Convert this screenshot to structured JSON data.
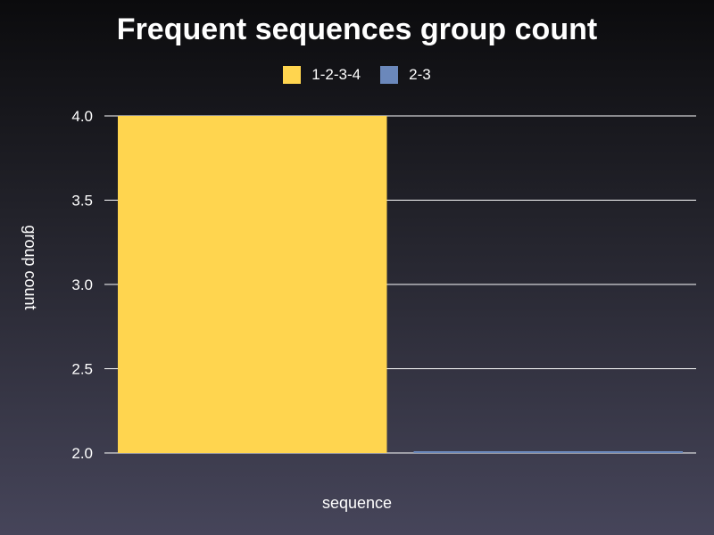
{
  "chart_data": {
    "type": "bar",
    "title": "Frequent sequences group count",
    "xlabel": "sequence",
    "ylabel": "group count",
    "ylim": [
      2.0,
      4.0
    ],
    "y_ticks": [
      "4.0",
      "3.5",
      "3.0",
      "2.5",
      "2.0"
    ],
    "y_tick_values": [
      4.0,
      3.5,
      3.0,
      2.5,
      2.0
    ],
    "grid": true,
    "legend_position": "top-center",
    "series": [
      {
        "name": "1-2-3-4",
        "value": 4,
        "color": "#ffd54f"
      },
      {
        "name": "2-3",
        "value": 2,
        "color": "#6b88bb"
      }
    ]
  }
}
